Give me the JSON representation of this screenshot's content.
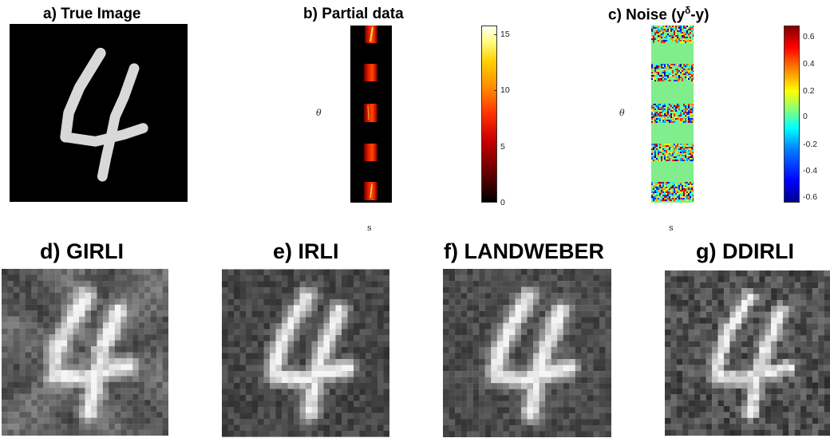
{
  "panels": {
    "a": {
      "title": "a) True Image"
    },
    "b": {
      "title": "b) Partial data",
      "ylabel": "θ",
      "xlabel": "s",
      "colorbar_ticks": [
        "15",
        "10",
        "5",
        "0"
      ]
    },
    "c": {
      "title_prefix": "c) Noise (y",
      "title_sup": "δ",
      "title_suffix": "-y)",
      "ylabel": "θ",
      "xlabel": "s",
      "colorbar_ticks": [
        "0.6",
        "0.4",
        "0.2",
        "0",
        "-0.2",
        "-0.4",
        "-0.6"
      ]
    },
    "d": {
      "title": "d) GIRLI"
    },
    "e": {
      "title": "e) IRLI"
    },
    "f": {
      "title": "f) LANDWEBER"
    },
    "g": {
      "title": "g) DDIRLI"
    }
  }
}
